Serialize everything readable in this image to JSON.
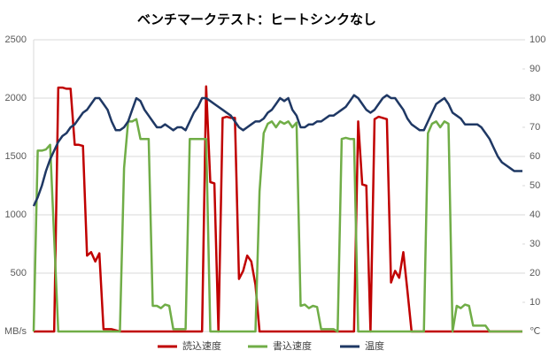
{
  "chart_data": {
    "type": "line",
    "title": "ベンチマークテスト：ヒートシンクなし",
    "y_label": "MB/s",
    "y2_label": "℃",
    "ylim": [
      0,
      2500
    ],
    "yticks": [
      500,
      1000,
      1500,
      2000,
      2500
    ],
    "y2lim": [
      0,
      100
    ],
    "y2ticks": [
      10,
      20,
      30,
      40,
      50,
      60,
      70,
      80,
      90,
      100
    ],
    "grid": true,
    "legend": "bottom",
    "series": [
      {
        "name": "読込速度",
        "color": "#c00000",
        "values": [
          0,
          0,
          0,
          0,
          0,
          0,
          2090,
          2090,
          2080,
          2080,
          1600,
          1600,
          1590,
          650,
          680,
          600,
          670,
          20,
          20,
          20,
          10,
          0,
          0,
          0,
          0,
          0,
          0,
          0,
          0,
          0,
          0,
          0,
          0,
          0,
          0,
          0,
          0,
          0,
          0,
          0,
          0,
          0,
          2100,
          1280,
          1270,
          0,
          1830,
          1840,
          1830,
          1830,
          450,
          520,
          650,
          600,
          400,
          0,
          0,
          0,
          0,
          0,
          0,
          0,
          0,
          0,
          0,
          0,
          0,
          0,
          0,
          0,
          0,
          0,
          0,
          0,
          0,
          0,
          0,
          0,
          0,
          1800,
          1260,
          1250,
          0,
          1820,
          1840,
          1830,
          1820,
          420,
          520,
          460,
          680,
          350,
          0,
          0,
          0,
          0,
          0,
          0,
          0,
          0,
          0,
          0,
          0,
          0,
          0,
          0,
          0,
          0,
          0,
          0,
          0,
          0,
          0,
          0,
          0,
          0,
          0,
          0,
          0,
          0
        ]
      },
      {
        "name": "書込速度",
        "color": "#70ad47",
        "values": [
          0,
          1550,
          1550,
          1560,
          1600,
          800,
          0,
          0,
          0,
          0,
          0,
          0,
          0,
          0,
          0,
          0,
          0,
          0,
          0,
          0,
          0,
          0,
          1400,
          1800,
          1800,
          1820,
          1650,
          1650,
          1650,
          220,
          220,
          200,
          230,
          220,
          20,
          20,
          20,
          20,
          1650,
          1650,
          1650,
          1650,
          1650,
          0,
          0,
          0,
          0,
          0,
          0,
          0,
          0,
          0,
          0,
          0,
          0,
          1200,
          1700,
          1780,
          1800,
          1750,
          1800,
          1780,
          1800,
          1750,
          1790,
          220,
          230,
          200,
          220,
          210,
          20,
          20,
          20,
          20,
          0,
          1650,
          1660,
          1650,
          1650,
          0,
          0,
          0,
          0,
          0,
          0,
          0,
          0,
          0,
          0,
          0,
          0,
          0,
          0,
          0,
          0,
          0,
          1700,
          1780,
          1800,
          1750,
          1800,
          1780,
          0,
          220,
          200,
          230,
          220,
          50,
          50,
          50,
          50,
          0,
          0,
          0,
          0,
          0,
          0,
          0,
          0,
          0
        ]
      },
      {
        "name": "温度",
        "color": "#1f3864",
        "axis": "y2",
        "values": [
          43,
          46,
          50,
          55,
          59,
          62,
          65,
          67,
          68,
          70,
          71,
          73,
          75,
          76,
          78,
          80,
          80,
          78,
          76,
          72,
          69,
          69,
          70,
          72,
          76,
          80,
          79,
          76,
          74,
          72,
          70,
          70,
          71,
          70,
          69,
          70,
          70,
          69,
          72,
          75,
          77,
          80,
          80,
          79,
          78,
          77,
          76,
          75,
          74,
          72,
          70,
          69,
          70,
          71,
          72,
          72,
          73,
          75,
          76,
          78,
          80,
          79,
          80,
          76,
          74,
          70,
          70,
          71,
          71,
          72,
          72,
          73,
          74,
          74,
          75,
          76,
          77,
          79,
          81,
          80,
          78,
          76,
          75,
          76,
          78,
          80,
          81,
          80,
          80,
          78,
          76,
          73,
          71,
          70,
          69,
          69,
          72,
          75,
          78,
          79,
          80,
          78,
          75,
          74,
          73,
          71,
          71,
          71,
          71,
          70,
          68,
          66,
          63,
          60,
          58,
          57,
          56,
          55,
          55,
          55
        ]
      }
    ]
  }
}
